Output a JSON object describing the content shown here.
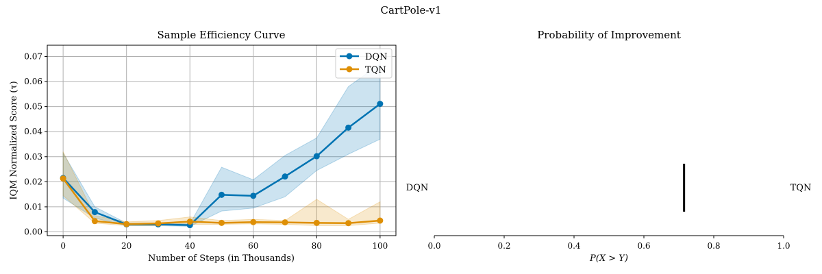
{
  "figure": {
    "suptitle": "CartPole-v1"
  },
  "colors": {
    "DQN": "#0173b2",
    "TQN": "#de8f05",
    "grid": "#b0b0b0",
    "axis": "#000000"
  },
  "chart_data": [
    {
      "type": "line",
      "title": "Sample Efficiency Curve",
      "xlabel": "Number of Steps (in Thousands)",
      "ylabel": "IQM Normalized Score (τ)",
      "xlim": [
        -5,
        105
      ],
      "ylim": [
        -0.0015,
        0.0745
      ],
      "xticks": [
        0,
        20,
        40,
        60,
        80,
        100
      ],
      "xtick_labels": [
        "0",
        "20",
        "40",
        "60",
        "80",
        "100"
      ],
      "yticks": [
        0.0,
        0.01,
        0.02,
        0.03,
        0.04,
        0.05,
        0.06,
        0.07
      ],
      "ytick_labels": [
        "0.00",
        "0.01",
        "0.02",
        "0.03",
        "0.04",
        "0.05",
        "0.06",
        "0.07"
      ],
      "grid": true,
      "legend_position": "upper right",
      "x": [
        0,
        10,
        20,
        30,
        40,
        50,
        60,
        70,
        80,
        90,
        100
      ],
      "series": [
        {
          "name": "DQN",
          "color": "#0173b2",
          "values": [
            0.0215,
            0.0079,
            0.003,
            0.003,
            0.0027,
            0.0148,
            0.0144,
            0.0221,
            0.0302,
            0.0416,
            0.0511
          ],
          "ci_low": [
            0.0135,
            0.0055,
            0.0025,
            0.0025,
            0.0022,
            0.0083,
            0.0095,
            0.014,
            0.0245,
            0.031,
            0.037
          ],
          "ci_high": [
            0.0315,
            0.01,
            0.0035,
            0.0035,
            0.0032,
            0.0258,
            0.0208,
            0.0305,
            0.0375,
            0.058,
            0.067
          ]
        },
        {
          "name": "TQN",
          "color": "#de8f05",
          "values": [
            0.0213,
            0.0043,
            0.0031,
            0.0034,
            0.0041,
            0.0036,
            0.0039,
            0.0038,
            0.0036,
            0.0035,
            0.0045
          ],
          "ci_low": [
            0.0145,
            0.0035,
            0.0025,
            0.0025,
            0.003,
            0.003,
            0.0032,
            0.003,
            0.0025,
            0.0025,
            0.0035
          ],
          "ci_high": [
            0.032,
            0.0065,
            0.004,
            0.0045,
            0.006,
            0.0045,
            0.005,
            0.0045,
            0.013,
            0.005,
            0.012
          ]
        }
      ]
    },
    {
      "type": "interval",
      "title": "Probability of Improvement",
      "xlabel": "P(X > Y)",
      "xlim": [
        0.0,
        1.0
      ],
      "xticks": [
        0.0,
        0.2,
        0.4,
        0.6,
        0.8,
        1.0
      ],
      "xtick_labels": [
        "0.0",
        "0.2",
        "0.4",
        "0.6",
        "0.8",
        "1.0"
      ],
      "left_label": "DQN",
      "right_label": "TQN",
      "value": 0.715,
      "color": "#000000"
    }
  ]
}
